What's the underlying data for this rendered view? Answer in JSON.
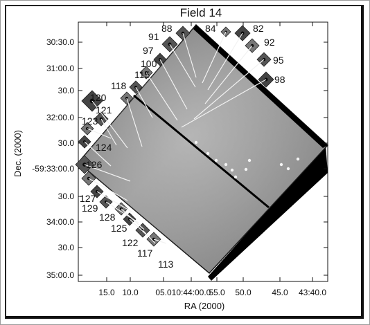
{
  "chart_data": {
    "type": "image",
    "title": "Field 14",
    "xlabel": "RA (2000)",
    "ylabel": "Dec. (2000)",
    "x_ticks": [
      "15.0",
      "10.0",
      "05.0",
      "10:44:00.0",
      "55.0",
      "50.0",
      "45.0",
      "43:40.0"
    ],
    "y_ticks": [
      "30:30.0",
      "31:00.0",
      "30.0",
      "32:00.0",
      "30.0",
      "-59:33:00.0",
      "30.0",
      "34:00.0",
      "30.0",
      "35:00.0"
    ],
    "source_labels": [
      "88",
      "84",
      "82",
      "91",
      "92",
      "97",
      "95",
      "100",
      "98",
      "115",
      "118",
      "120",
      "121",
      "123",
      "124",
      "126",
      "127",
      "129",
      "128",
      "125",
      "122",
      "117",
      "113"
    ]
  }
}
